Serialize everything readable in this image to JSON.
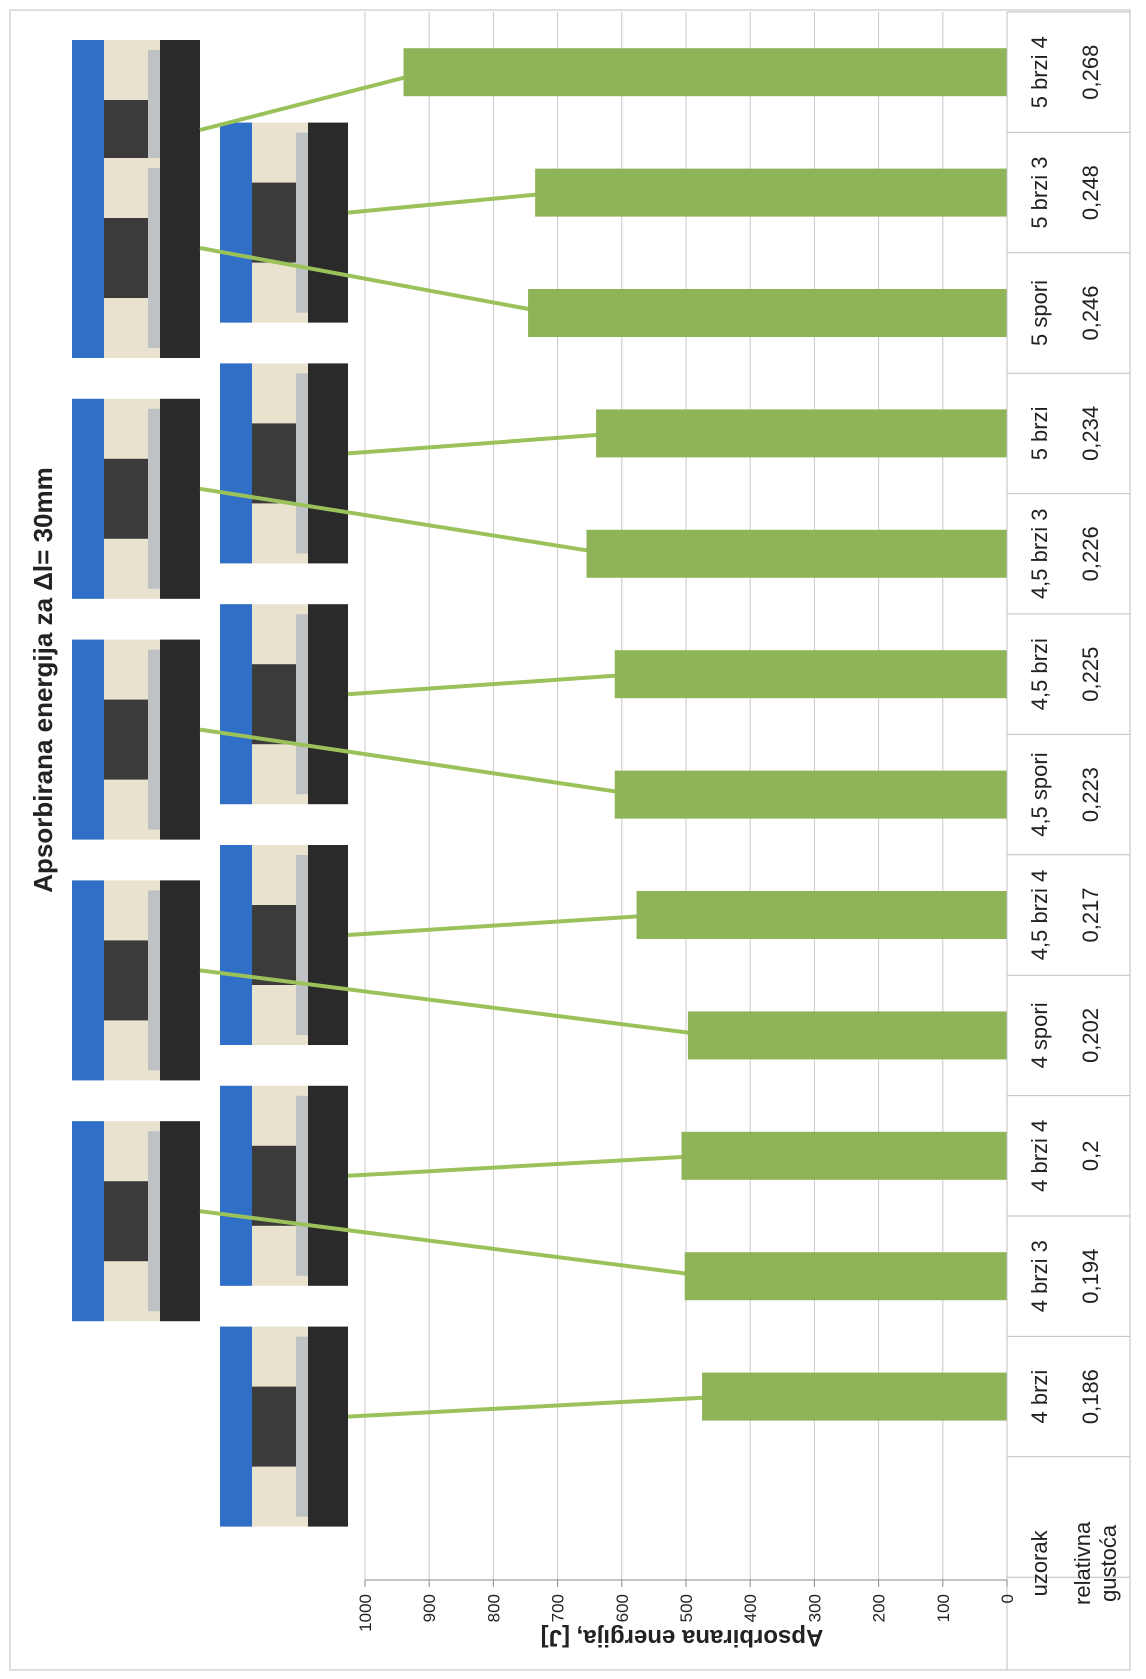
{
  "chart_data": {
    "type": "bar",
    "orientation": "rotated-90",
    "title": "Apsorbirana energija za  Δl= 30mm",
    "ylabel": "Apsorbirana energija, [J]",
    "ylim": [
      0,
      1000
    ],
    "yticks": [
      0,
      100,
      200,
      300,
      400,
      500,
      600,
      700,
      800,
      900,
      1000
    ],
    "grid": true,
    "bar_color": "#8FB357",
    "table_row_labels": [
      "uzorak",
      "relativna gustoća"
    ],
    "categories": [
      "4 brzi",
      "4 brzi 3",
      "4 brzi 4",
      "4 spori",
      "4,5 brzi 4",
      "4,5 spori",
      "4,5 brzi",
      "4,5 brzi 3",
      "5 brzi",
      "5 spori",
      "5 brzi 3",
      "5 brzi 4"
    ],
    "relative_density": [
      "0,186",
      "0,194",
      "0,2",
      "0,202",
      "0,217",
      "0,223",
      "0,225",
      "0,226",
      "0,234",
      "0,246",
      "0,248",
      "0,268"
    ],
    "values": [
      475,
      502,
      507,
      497,
      577,
      611,
      611,
      655,
      640,
      746,
      735,
      940
    ]
  },
  "photos": {
    "count": 12,
    "description_icon": "specimen-photo-icon"
  }
}
